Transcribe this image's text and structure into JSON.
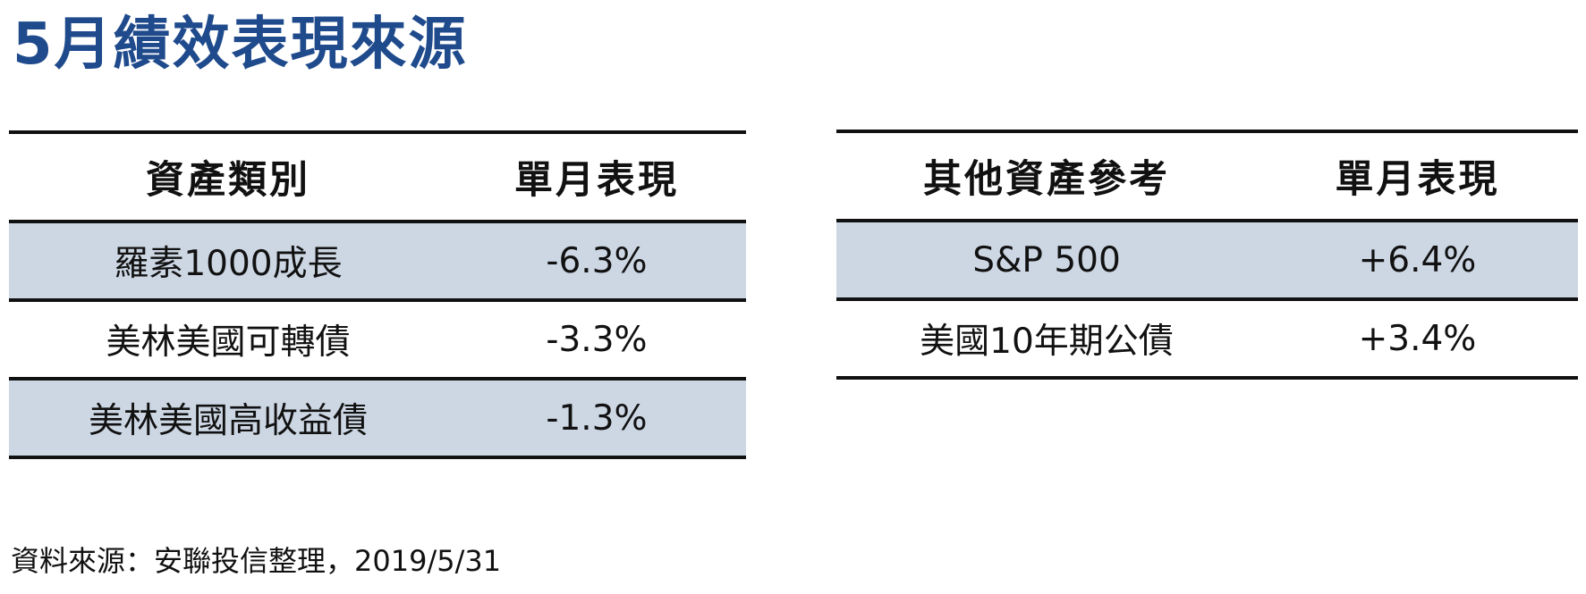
{
  "title": "5月績效表現來源",
  "left_table": {
    "headers": [
      "資產類別",
      "單月表現"
    ],
    "rows": [
      {
        "name": "羅素1000成長",
        "value": "-6.3%"
      },
      {
        "name": "美林美國可轉債",
        "value": "-3.3%"
      },
      {
        "name": "美林美國高收益債",
        "value": "-1.3%"
      }
    ]
  },
  "right_table": {
    "headers": [
      "其他資產參考",
      "單月表現"
    ],
    "rows": [
      {
        "name": "S&P 500",
        "value": "+6.4%"
      },
      {
        "name": "美國10年期公債",
        "value": "+3.4%"
      }
    ]
  },
  "source": "資料來源：安聯投信整理，2019/5/31",
  "colors": {
    "title": "#1f4a8c",
    "row_shade": "#cdd7e4",
    "rule": "#111111"
  }
}
